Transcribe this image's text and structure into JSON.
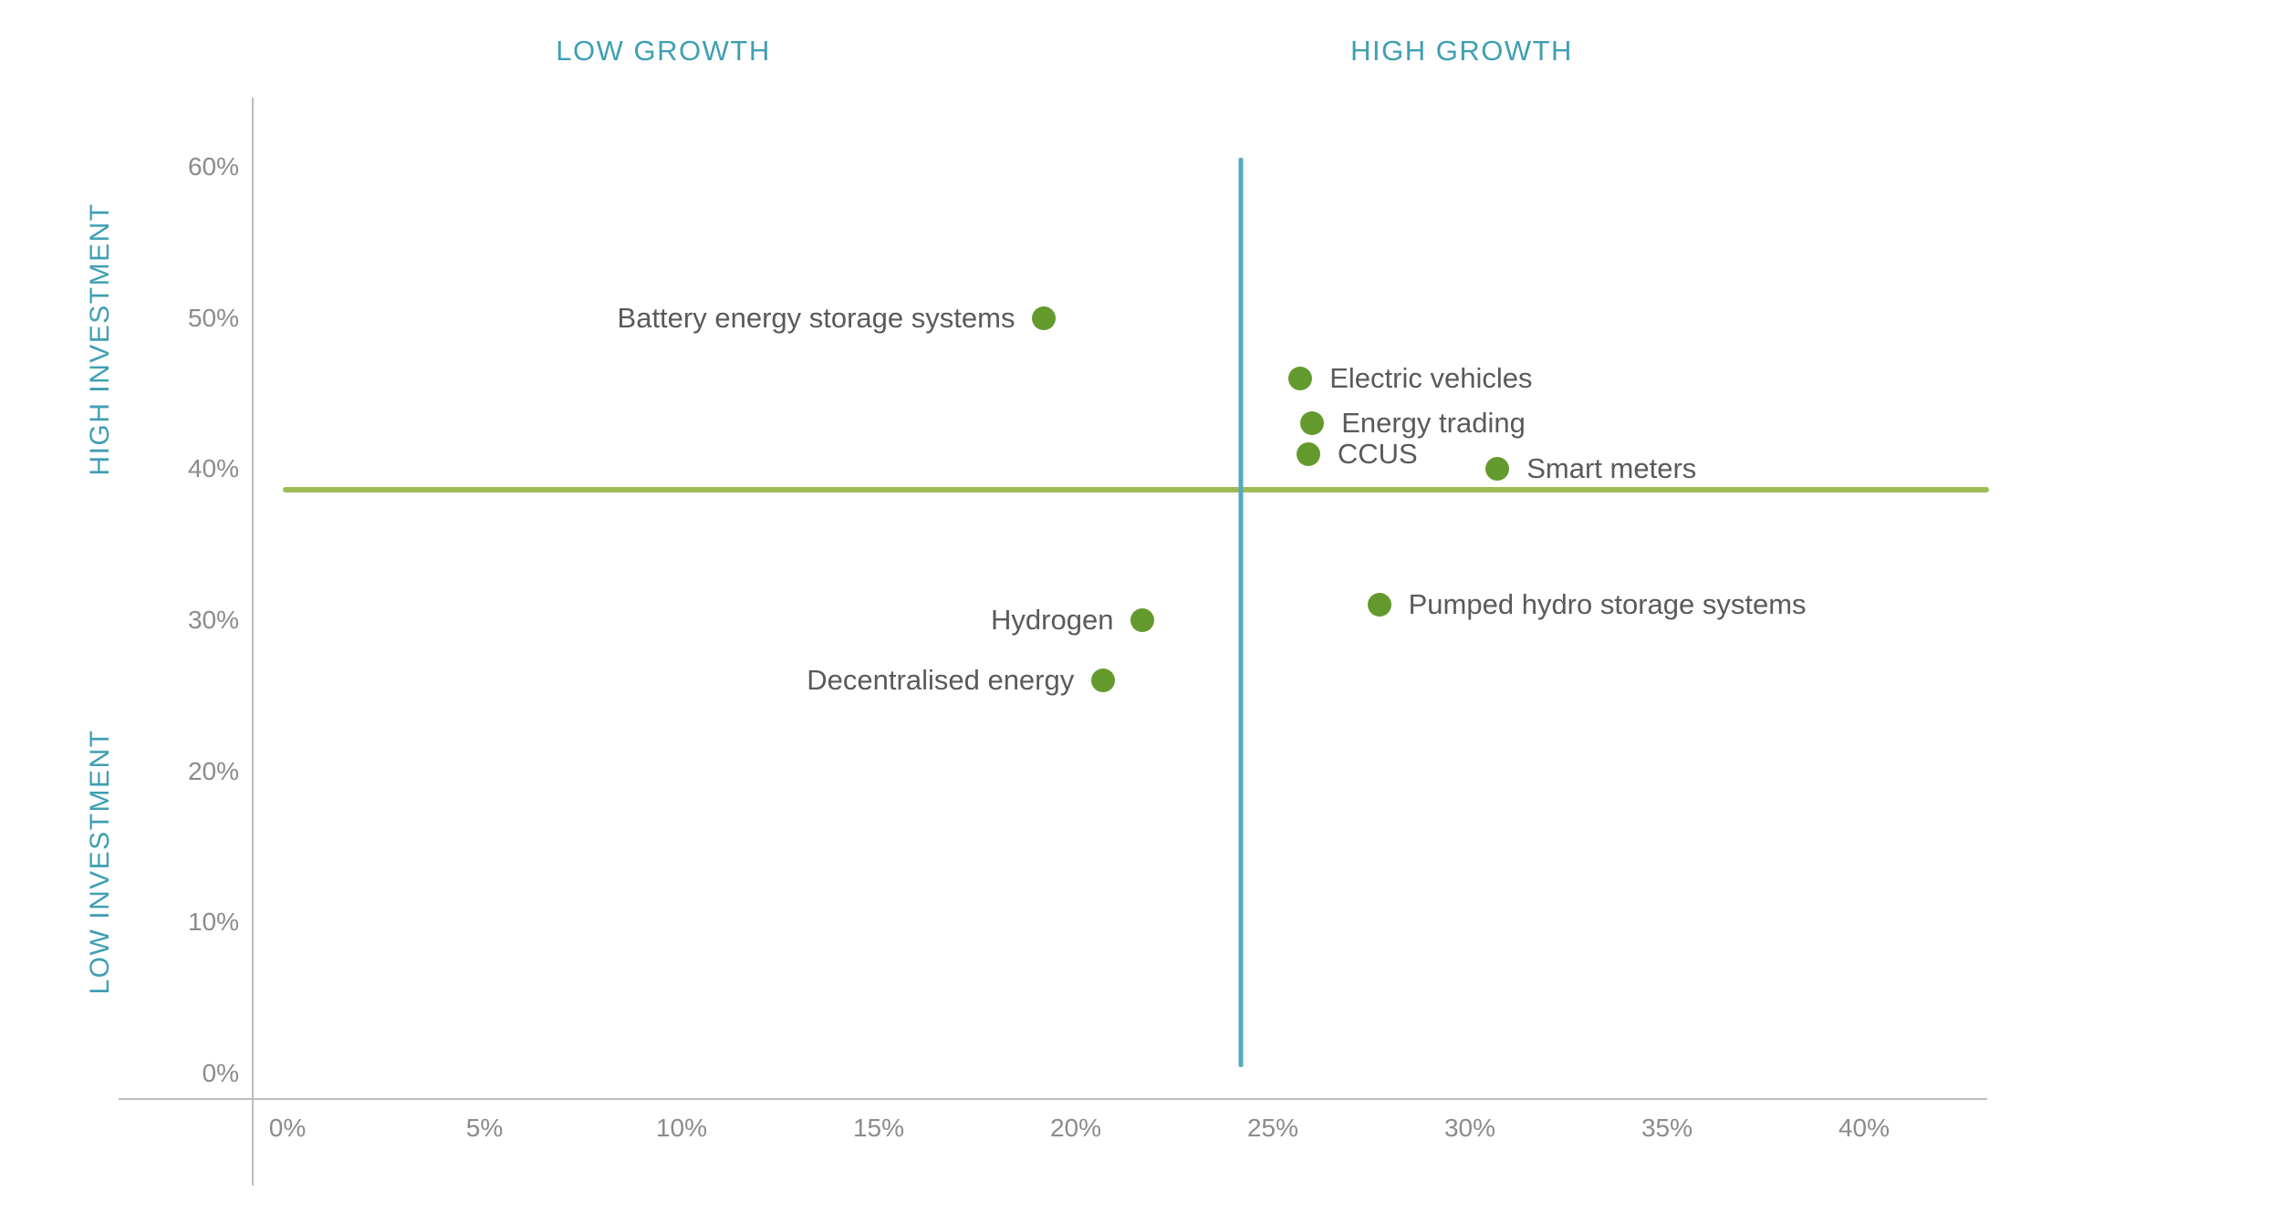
{
  "chart_data": {
    "type": "scatter",
    "axis_unit": "%",
    "xlim": [
      0,
      40
    ],
    "ylim": [
      0,
      60
    ],
    "grid": false,
    "legend": false,
    "annotations": {
      "top_left": "LOW GROWTH",
      "top_right": "HIGH GROWTH",
      "left_top": "HIGH INVESTMENT",
      "left_bottom": "LOW INVESTMENT"
    },
    "x_ticks": [
      0,
      5,
      10,
      15,
      20,
      25,
      30,
      35,
      40
    ],
    "x_tick_labels": [
      "0%",
      "5%",
      "10%",
      "15%",
      "20%",
      "25%",
      "30%",
      "35%",
      "40%"
    ],
    "y_ticks": [
      0,
      10,
      20,
      30,
      40,
      50,
      60
    ],
    "y_tick_labels": [
      "0%",
      "10%",
      "20%",
      "30%",
      "40%",
      "50%",
      "60%"
    ],
    "points": [
      {
        "label": "Battery energy storage systems",
        "x": 19.2,
        "y": 50,
        "label_side": "left"
      },
      {
        "label": "Electric vehicles",
        "x": 25.7,
        "y": 46,
        "label_side": "right"
      },
      {
        "label": "Energy trading",
        "x": 26.0,
        "y": 43,
        "label_side": "right"
      },
      {
        "label": "CCUS",
        "x": 25.9,
        "y": 41,
        "label_side": "right"
      },
      {
        "label": "Smart meters",
        "x": 30.7,
        "y": 40,
        "label_side": "right"
      },
      {
        "label": "Pumped hydro storage systems",
        "x": 27.7,
        "y": 31,
        "label_side": "right"
      },
      {
        "label": "Hydrogen",
        "x": 21.7,
        "y": 30,
        "label_side": "left"
      },
      {
        "label": "Decentralised energy",
        "x": 20.7,
        "y": 26,
        "label_side": "left"
      }
    ],
    "reference_lines": {
      "horizontal_investment_threshold": 38.6,
      "vertical_growth_threshold": 24.2
    }
  },
  "colors": {
    "teal_heading": "#3f9fb2",
    "dot_green": "#649a2d",
    "reference_green": "#9dbd57",
    "reference_blue": "#56a9bf",
    "axis_gray": "#bcbcbc",
    "tick_gray": "#8b8b8b",
    "label_gray": "#5a5a5a"
  }
}
